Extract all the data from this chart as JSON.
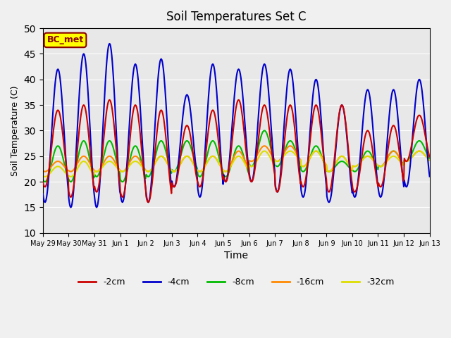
{
  "title": "Soil Temperatures Set C",
  "xlabel": "Time",
  "ylabel": "Soil Temperature (C)",
  "ylim": [
    10,
    50
  ],
  "background_color": "#e8e8e8",
  "annotation_text": "BC_met",
  "annotation_bg": "#ffff00",
  "annotation_border": "#8b0000",
  "series": {
    "-2cm": {
      "color": "#cc0000",
      "linewidth": 1.5
    },
    "-4cm": {
      "color": "#0000cc",
      "linewidth": 1.5
    },
    "-8cm": {
      "color": "#00bb00",
      "linewidth": 1.5
    },
    "-16cm": {
      "color": "#ff8800",
      "linewidth": 1.5
    },
    "-32cm": {
      "color": "#dddd00",
      "linewidth": 1.5
    }
  },
  "x_tick_labels": [
    "May 29",
    "May 30",
    "May 31",
    "Jun 1",
    "Jun 2",
    "Jun 3",
    "Jun 4",
    "Jun 5",
    "Jun 6",
    "Jun 7",
    "Jun 8",
    "Jun 9",
    "Jun 10",
    "Jun 11",
    "Jun 12",
    "Jun 13"
  ],
  "num_days": 15,
  "points_per_day": 48,
  "neg2cm_peaks": [
    34,
    35,
    36,
    35,
    34,
    31,
    34,
    36,
    35,
    35,
    35,
    35,
    30,
    31,
    33
  ],
  "neg2cm_troughs": [
    19,
    17,
    18,
    17,
    16,
    19,
    19,
    20,
    20,
    18,
    19,
    18,
    18,
    19,
    24
  ],
  "neg4cm_peaks": [
    42,
    45,
    47,
    43,
    44,
    37,
    43,
    42,
    43,
    42,
    40,
    35,
    38,
    38,
    40
  ],
  "neg4cm_troughs": [
    16,
    15,
    15,
    16,
    16,
    19,
    17,
    20,
    20,
    18,
    17,
    16,
    17,
    17,
    19
  ],
  "neg8cm_peaks": [
    27,
    28,
    28,
    27,
    28,
    28,
    28,
    27,
    30,
    28,
    27,
    24,
    26,
    26,
    28
  ],
  "neg8cm_troughs": [
    20,
    20,
    21,
    20,
    21,
    22,
    21,
    21,
    23,
    23,
    22,
    22,
    22,
    23,
    24
  ],
  "neg16cm_peaks": [
    24,
    25,
    25,
    25,
    25,
    25,
    25,
    26,
    27,
    27,
    26,
    25,
    25,
    26,
    26
  ],
  "neg16cm_troughs": [
    22,
    22,
    22,
    22,
    22,
    22,
    22,
    22,
    24,
    24,
    23,
    22,
    23,
    23,
    24
  ],
  "neg32cm_peaks": [
    23,
    24,
    24,
    24,
    25,
    25,
    25,
    25,
    26,
    26,
    26,
    25,
    25,
    25,
    26
  ],
  "neg32cm_troughs": [
    21,
    21,
    22,
    22,
    22,
    22,
    22,
    22,
    23,
    24,
    23,
    22,
    23,
    23,
    24
  ]
}
